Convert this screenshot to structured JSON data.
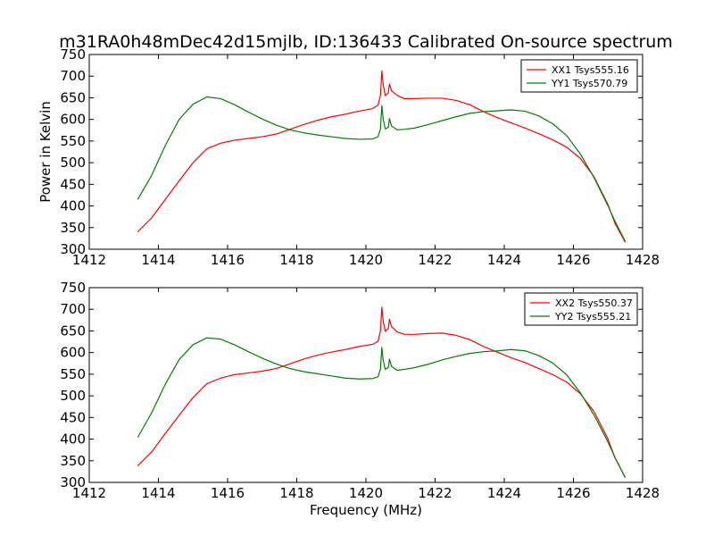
{
  "title": "m31RA0h48mDec42d15mjlb, ID:136433 Calibrated On-source spectrum",
  "colors": {
    "xx": "#ff0000",
    "yy": "#008000"
  },
  "chart_data": [
    {
      "type": "line",
      "ylabel": "Power in Kelvin",
      "xlabel": "",
      "xlim": [
        1412,
        1428
      ],
      "ylim": [
        300,
        750
      ],
      "xticks": [
        1412,
        1414,
        1416,
        1418,
        1420,
        1422,
        1424,
        1426,
        1428
      ],
      "yticks": [
        300,
        350,
        400,
        450,
        500,
        550,
        600,
        650,
        700,
        750
      ],
      "legend_position": "top-right",
      "series": [
        {
          "name": "XX1 Tsys555.16",
          "color": "#ff0000",
          "points": [
            [
              1413.4,
              340
            ],
            [
              1413.8,
              372
            ],
            [
              1414.2,
              415
            ],
            [
              1414.6,
              458
            ],
            [
              1415.0,
              500
            ],
            [
              1415.4,
              532
            ],
            [
              1415.8,
              545
            ],
            [
              1416.2,
              552
            ],
            [
              1416.6,
              556
            ],
            [
              1417.0,
              560
            ],
            [
              1417.4,
              566
            ],
            [
              1417.8,
              577
            ],
            [
              1418.2,
              588
            ],
            [
              1418.6,
              598
            ],
            [
              1419.0,
              606
            ],
            [
              1419.4,
              612
            ],
            [
              1419.8,
              619
            ],
            [
              1420.2,
              625
            ],
            [
              1420.35,
              633
            ],
            [
              1420.42,
              655
            ],
            [
              1420.46,
              712
            ],
            [
              1420.5,
              680
            ],
            [
              1420.56,
              655
            ],
            [
              1420.65,
              662
            ],
            [
              1420.68,
              682
            ],
            [
              1420.74,
              666
            ],
            [
              1420.9,
              656
            ],
            [
              1421.1,
              648
            ],
            [
              1421.4,
              648
            ],
            [
              1421.8,
              649
            ],
            [
              1422.2,
              649
            ],
            [
              1422.6,
              644
            ],
            [
              1423.0,
              634
            ],
            [
              1423.4,
              618
            ],
            [
              1423.8,
              604
            ],
            [
              1424.2,
              592
            ],
            [
              1424.6,
              580
            ],
            [
              1425.0,
              567
            ],
            [
              1425.4,
              553
            ],
            [
              1425.8,
              536
            ],
            [
              1426.2,
              510
            ],
            [
              1426.6,
              467
            ],
            [
              1427.0,
              403
            ],
            [
              1427.2,
              360
            ],
            [
              1427.5,
              316
            ]
          ]
        },
        {
          "name": "YY1 Tsys570.79",
          "color": "#008000",
          "points": [
            [
              1413.4,
              415
            ],
            [
              1413.8,
              470
            ],
            [
              1414.2,
              540
            ],
            [
              1414.6,
              600
            ],
            [
              1415.0,
              635
            ],
            [
              1415.4,
              652
            ],
            [
              1415.8,
              648
            ],
            [
              1416.2,
              634
            ],
            [
              1416.6,
              617
            ],
            [
              1417.0,
              601
            ],
            [
              1417.4,
              587
            ],
            [
              1417.8,
              576
            ],
            [
              1418.2,
              569
            ],
            [
              1418.6,
              564
            ],
            [
              1419.0,
              560
            ],
            [
              1419.4,
              556
            ],
            [
              1419.8,
              554
            ],
            [
              1420.2,
              555
            ],
            [
              1420.35,
              560
            ],
            [
              1420.42,
              578
            ],
            [
              1420.46,
              632
            ],
            [
              1420.5,
              600
            ],
            [
              1420.56,
              578
            ],
            [
              1420.65,
              582
            ],
            [
              1420.68,
              602
            ],
            [
              1420.74,
              585
            ],
            [
              1420.9,
              576
            ],
            [
              1421.1,
              577
            ],
            [
              1421.4,
              580
            ],
            [
              1421.8,
              588
            ],
            [
              1422.2,
              597
            ],
            [
              1422.6,
              606
            ],
            [
              1423.0,
              614
            ],
            [
              1423.4,
              618
            ],
            [
              1423.8,
              620
            ],
            [
              1424.2,
              622
            ],
            [
              1424.6,
              619
            ],
            [
              1425.0,
              608
            ],
            [
              1425.4,
              590
            ],
            [
              1425.8,
              563
            ],
            [
              1426.2,
              520
            ],
            [
              1426.6,
              465
            ],
            [
              1427.0,
              400
            ],
            [
              1427.2,
              365
            ],
            [
              1427.5,
              318
            ]
          ]
        }
      ]
    },
    {
      "type": "line",
      "ylabel": "",
      "xlabel": "Frequency (MHz)",
      "xlim": [
        1412,
        1428
      ],
      "ylim": [
        300,
        750
      ],
      "xticks": [
        1412,
        1414,
        1416,
        1418,
        1420,
        1422,
        1424,
        1426,
        1428
      ],
      "yticks": [
        300,
        350,
        400,
        450,
        500,
        550,
        600,
        650,
        700,
        750
      ],
      "legend_position": "top-right",
      "series": [
        {
          "name": "XX2 Tsys550.37",
          "color": "#ff0000",
          "points": [
            [
              1413.4,
              338
            ],
            [
              1413.8,
              370
            ],
            [
              1414.2,
              413
            ],
            [
              1414.6,
              455
            ],
            [
              1415.0,
              496
            ],
            [
              1415.4,
              528
            ],
            [
              1415.8,
              541
            ],
            [
              1416.2,
              549
            ],
            [
              1416.6,
              553
            ],
            [
              1417.0,
              557
            ],
            [
              1417.4,
              563
            ],
            [
              1417.8,
              574
            ],
            [
              1418.2,
              585
            ],
            [
              1418.6,
              594
            ],
            [
              1419.0,
              601
            ],
            [
              1419.4,
              607
            ],
            [
              1419.8,
              614
            ],
            [
              1420.2,
              619
            ],
            [
              1420.35,
              626
            ],
            [
              1420.42,
              650
            ],
            [
              1420.46,
              705
            ],
            [
              1420.5,
              672
            ],
            [
              1420.56,
              649
            ],
            [
              1420.65,
              656
            ],
            [
              1420.68,
              677
            ],
            [
              1420.74,
              660
            ],
            [
              1420.9,
              648
            ],
            [
              1421.1,
              642
            ],
            [
              1421.4,
              642
            ],
            [
              1421.8,
              644
            ],
            [
              1422.2,
              645
            ],
            [
              1422.6,
              640
            ],
            [
              1423.0,
              630
            ],
            [
              1423.4,
              614
            ],
            [
              1423.8,
              601
            ],
            [
              1424.2,
              588
            ],
            [
              1424.6,
              577
            ],
            [
              1425.0,
              563
            ],
            [
              1425.4,
              549
            ],
            [
              1425.8,
              532
            ],
            [
              1426.2,
              505
            ],
            [
              1426.6,
              463
            ],
            [
              1427.0,
              400
            ],
            [
              1427.2,
              357
            ],
            [
              1427.5,
              311
            ]
          ]
        },
        {
          "name": "YY2 Tsys555.21",
          "color": "#008000",
          "points": [
            [
              1413.4,
              404
            ],
            [
              1413.8,
              460
            ],
            [
              1414.2,
              527
            ],
            [
              1414.6,
              584
            ],
            [
              1415.0,
              618
            ],
            [
              1415.4,
              634
            ],
            [
              1415.8,
              631
            ],
            [
              1416.2,
              618
            ],
            [
              1416.6,
              602
            ],
            [
              1417.0,
              587
            ],
            [
              1417.4,
              574
            ],
            [
              1417.8,
              563
            ],
            [
              1418.2,
              556
            ],
            [
              1418.6,
              551
            ],
            [
              1419.0,
              546
            ],
            [
              1419.4,
              541
            ],
            [
              1419.8,
              539
            ],
            [
              1420.2,
              540
            ],
            [
              1420.35,
              544
            ],
            [
              1420.42,
              562
            ],
            [
              1420.46,
              612
            ],
            [
              1420.5,
              582
            ],
            [
              1420.56,
              561
            ],
            [
              1420.65,
              566
            ],
            [
              1420.68,
              585
            ],
            [
              1420.74,
              568
            ],
            [
              1420.9,
              559
            ],
            [
              1421.1,
              561
            ],
            [
              1421.4,
              565
            ],
            [
              1421.8,
              573
            ],
            [
              1422.2,
              583
            ],
            [
              1422.6,
              591
            ],
            [
              1423.0,
              598
            ],
            [
              1423.4,
              602
            ],
            [
              1423.8,
              604
            ],
            [
              1424.2,
              607
            ],
            [
              1424.6,
              604
            ],
            [
              1425.0,
              593
            ],
            [
              1425.4,
              576
            ],
            [
              1425.8,
              549
            ],
            [
              1426.2,
              507
            ],
            [
              1426.6,
              455
            ],
            [
              1427.0,
              393
            ],
            [
              1427.2,
              358
            ],
            [
              1427.5,
              311
            ]
          ]
        }
      ]
    }
  ]
}
